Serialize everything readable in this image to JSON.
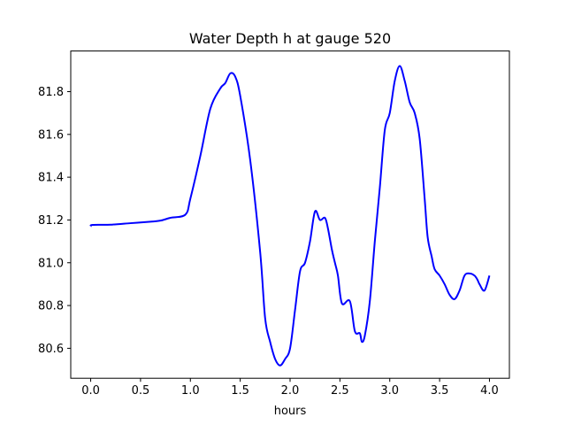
{
  "chart_data": {
    "type": "line",
    "title": "Water Depth h at gauge 520",
    "xlabel": "hours",
    "ylabel": "",
    "xlim": [
      -0.2,
      4.2
    ],
    "ylim": [
      80.46,
      81.99
    ],
    "xticks": [
      0.0,
      0.5,
      1.0,
      1.5,
      2.0,
      2.5,
      3.0,
      3.5,
      4.0
    ],
    "xtick_labels": [
      "0.0",
      "0.5",
      "1.0",
      "1.5",
      "2.0",
      "2.5",
      "3.0",
      "3.5",
      "4.0"
    ],
    "yticks": [
      80.6,
      80.8,
      81.0,
      81.2,
      81.4,
      81.6,
      81.8
    ],
    "ytick_labels": [
      "80.6",
      "80.8",
      "81.0",
      "81.2",
      "81.4",
      "81.6",
      "81.8"
    ],
    "grid": false,
    "legend": "none",
    "series": [
      {
        "color": "#0000ff",
        "x": [
          0.0,
          0.02,
          0.2,
          0.4,
          0.6,
          0.7,
          0.8,
          0.95,
          1.0,
          1.1,
          1.2,
          1.3,
          1.35,
          1.4,
          1.45,
          1.5,
          1.6,
          1.7,
          1.75,
          1.8,
          1.85,
          1.9,
          1.95,
          2.0,
          2.05,
          2.1,
          2.15,
          2.2,
          2.25,
          2.3,
          2.35,
          2.38,
          2.42,
          2.45,
          2.48,
          2.52,
          2.6,
          2.65,
          2.7,
          2.72,
          2.75,
          2.8,
          2.85,
          2.9,
          2.95,
          3.0,
          3.05,
          3.1,
          3.15,
          3.2,
          3.25,
          3.3,
          3.35,
          3.38,
          3.42,
          3.45,
          3.5,
          3.55,
          3.6,
          3.65,
          3.7,
          3.75,
          3.8,
          3.85,
          3.88,
          3.9,
          3.95,
          4.0
        ],
        "values": [
          81.17,
          81.177,
          81.178,
          81.185,
          81.192,
          81.197,
          81.21,
          81.225,
          81.3,
          81.5,
          81.72,
          81.815,
          81.84,
          81.885,
          81.87,
          81.78,
          81.48,
          81.05,
          80.74,
          80.63,
          80.55,
          80.52,
          80.55,
          80.6,
          80.78,
          80.96,
          81.0,
          81.1,
          81.24,
          81.2,
          81.21,
          81.16,
          81.06,
          81.0,
          80.94,
          80.81,
          80.82,
          80.68,
          80.67,
          80.63,
          80.66,
          80.82,
          81.1,
          81.35,
          81.62,
          81.7,
          81.85,
          81.92,
          81.85,
          81.75,
          81.7,
          81.58,
          81.3,
          81.12,
          81.03,
          80.97,
          80.94,
          80.9,
          80.85,
          80.83,
          80.87,
          80.94,
          80.95,
          80.94,
          80.92,
          80.9,
          80.87,
          80.94
        ]
      }
    ]
  }
}
